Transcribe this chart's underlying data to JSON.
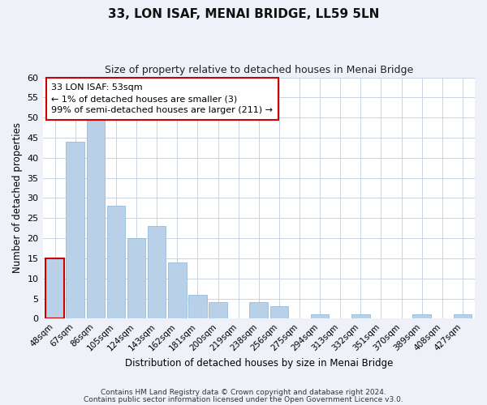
{
  "title": "33, LON ISAF, MENAI BRIDGE, LL59 5LN",
  "subtitle": "Size of property relative to detached houses in Menai Bridge",
  "xlabel": "Distribution of detached houses by size in Menai Bridge",
  "ylabel": "Number of detached properties",
  "categories": [
    "48sqm",
    "67sqm",
    "86sqm",
    "105sqm",
    "124sqm",
    "143sqm",
    "162sqm",
    "181sqm",
    "200sqm",
    "219sqm",
    "238sqm",
    "256sqm",
    "275sqm",
    "294sqm",
    "313sqm",
    "332sqm",
    "351sqm",
    "370sqm",
    "389sqm",
    "408sqm",
    "427sqm"
  ],
  "values": [
    15,
    44,
    50,
    28,
    20,
    23,
    14,
    6,
    4,
    0,
    4,
    3,
    0,
    1,
    0,
    1,
    0,
    0,
    1,
    0,
    1
  ],
  "bar_color": "#b8d0e8",
  "bar_edge_color": "#8ab4d4",
  "highlight_bar_index": 0,
  "highlight_edge_color": "#cc0000",
  "annotation_box_edge_color": "#cc0000",
  "annotation_lines": [
    "33 LON ISAF: 53sqm",
    "← 1% of detached houses are smaller (3)",
    "99% of semi-detached houses are larger (211) →"
  ],
  "ylim": [
    0,
    60
  ],
  "yticks": [
    0,
    5,
    10,
    15,
    20,
    25,
    30,
    35,
    40,
    45,
    50,
    55,
    60
  ],
  "footer_lines": [
    "Contains HM Land Registry data © Crown copyright and database right 2024.",
    "Contains public sector information licensed under the Open Government Licence v3.0."
  ],
  "background_color": "#eef2f8",
  "plot_background_color": "#ffffff",
  "grid_color": "#c8d4e4"
}
